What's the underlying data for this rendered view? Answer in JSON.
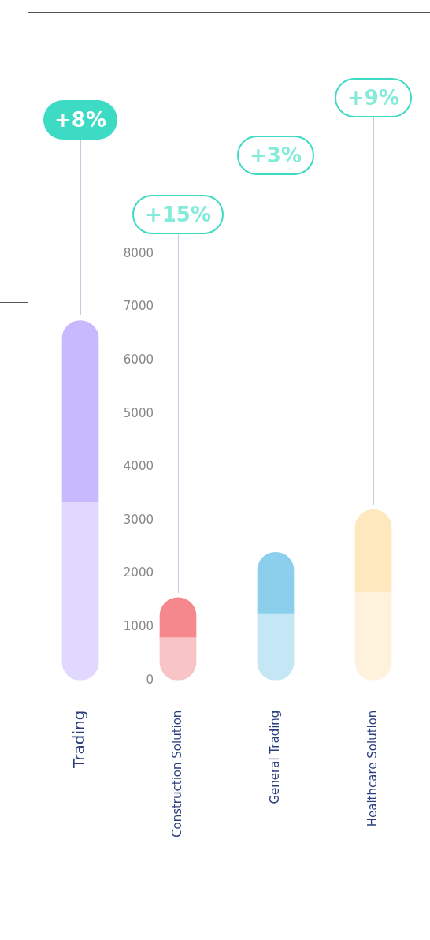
{
  "chart_data": {
    "type": "bar",
    "stacked": true,
    "categories": [
      "Trading",
      "Construction Solution",
      "General Trading",
      "Healthcare Solution"
    ],
    "series": [
      {
        "colors": [
          "#e0d8fe",
          "#f9c4c6",
          "#c4e6f5",
          "#fff2dc"
        ],
        "values": [
          3350,
          800,
          1250,
          1650
        ]
      },
      {
        "colors": [
          "#c8b8fe",
          "#f4888c",
          "#8bcfec",
          "#ffe7be"
        ],
        "values": [
          3400,
          750,
          1150,
          1550
        ]
      }
    ],
    "ylim": [
      0,
      8000
    ],
    "yticks": [
      0,
      1000,
      2000,
      3000,
      4000,
      5000,
      6000,
      7000,
      8000
    ],
    "legend": false,
    "annotations": [
      "+8%",
      "+15%",
      "+3%",
      "+9%"
    ]
  }
}
